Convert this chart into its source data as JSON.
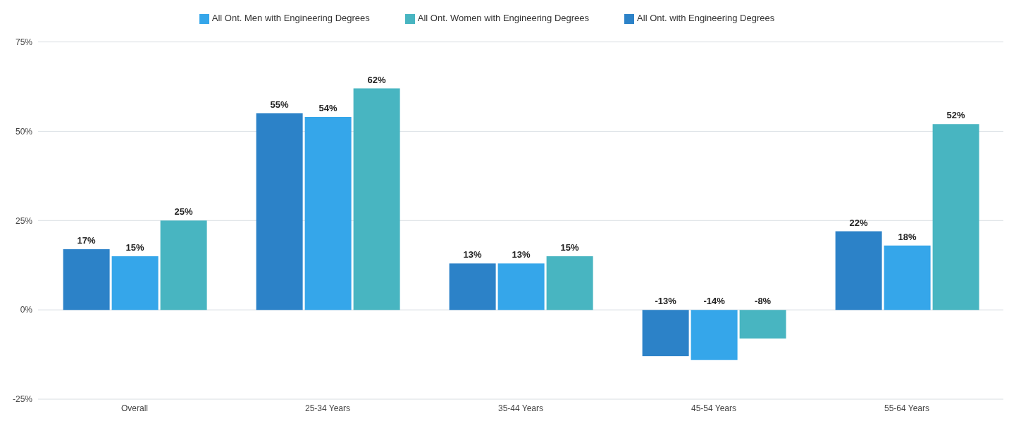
{
  "chart_data": {
    "type": "bar",
    "categories": [
      "Overall",
      "25-34 Years",
      "35-44 Years",
      "45-54 Years",
      "55-64 Years"
    ],
    "series": [
      {
        "name": "All Ont. with Engineering Degrees",
        "color": "#2c82c8",
        "values": [
          17,
          55,
          13,
          -13,
          22
        ],
        "value_labels": [
          "17%",
          "55%",
          "13%",
          "-13%",
          "22%"
        ]
      },
      {
        "name": "All Ont. Men with Engineering Degrees",
        "color": "#35a6ea",
        "values": [
          15,
          54,
          13,
          -14,
          18
        ],
        "value_labels": [
          "15%",
          "54%",
          "13%",
          "-14%",
          "18%"
        ]
      },
      {
        "name": "All Ont. Women with Engineering Degrees",
        "color": "#48b5c1",
        "values": [
          25,
          62,
          15,
          -8,
          52
        ],
        "value_labels": [
          "25%",
          "62%",
          "15%",
          "-8%",
          "52%"
        ]
      }
    ],
    "ylim": [
      -25,
      75
    ],
    "yticks": [
      {
        "value": -25,
        "label": "-25%"
      },
      {
        "value": 0,
        "label": "0%"
      },
      {
        "value": 25,
        "label": "25%"
      },
      {
        "value": 50,
        "label": "50%"
      },
      {
        "value": 75,
        "label": "75%"
      }
    ],
    "grid": "y",
    "legend": "top"
  }
}
